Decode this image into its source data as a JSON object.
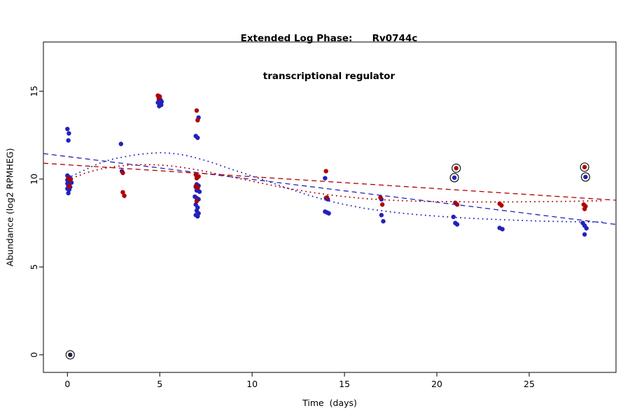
{
  "header": {
    "title_line1": "Extended Log Phase:      Rv0744c",
    "title_line2": "transcriptional regulator"
  },
  "chart_data": {
    "type": "scatter",
    "title": "Extended Log Phase: Rv0744c transcriptional regulator",
    "xlabel": "Time  (days)",
    "ylabel": "Abundance  (log2 RPMHEG)",
    "xlim": [
      -1.3,
      29.7
    ],
    "ylim": [
      -1.0,
      17.8
    ],
    "xticks": [
      0,
      5,
      10,
      15,
      20,
      25
    ],
    "yticks": [
      0,
      5,
      10,
      15
    ],
    "grid": false,
    "legend": "none",
    "colors": {
      "blue": "#2222bb",
      "red": "#b00000",
      "ring": "#000000"
    },
    "series": [
      {
        "name": "blue-point",
        "color": "#2222bb",
        "points": [
          [
            0.0,
            12.85
          ],
          [
            0.08,
            12.6
          ],
          [
            0.05,
            12.2
          ],
          [
            0.0,
            10.2
          ],
          [
            0.1,
            10.1
          ],
          [
            0.18,
            10.0
          ],
          [
            0.0,
            9.95
          ],
          [
            0.08,
            9.9
          ],
          [
            0.15,
            9.85
          ],
          [
            0.22,
            9.8
          ],
          [
            0.0,
            9.75
          ],
          [
            0.1,
            9.7
          ],
          [
            0.05,
            9.6
          ],
          [
            0.15,
            9.55
          ],
          [
            0.0,
            9.45
          ],
          [
            0.1,
            9.4
          ],
          [
            0.05,
            9.2
          ],
          [
            2.9,
            12.0
          ],
          [
            2.95,
            10.45
          ],
          [
            4.95,
            14.55
          ],
          [
            5.05,
            14.5
          ],
          [
            5.0,
            14.45
          ],
          [
            5.1,
            14.4
          ],
          [
            4.9,
            14.35
          ],
          [
            5.0,
            14.3
          ],
          [
            5.08,
            14.22
          ],
          [
            4.97,
            14.15
          ],
          [
            7.1,
            13.5
          ],
          [
            6.95,
            12.45
          ],
          [
            7.05,
            12.35
          ],
          [
            7.0,
            9.7
          ],
          [
            7.1,
            9.62
          ],
          [
            6.95,
            9.55
          ],
          [
            7.05,
            9.45
          ],
          [
            7.0,
            9.35
          ],
          [
            7.15,
            9.28
          ],
          [
            6.9,
            9.0
          ],
          [
            7.0,
            8.92
          ],
          [
            7.1,
            8.85
          ],
          [
            6.95,
            8.55
          ],
          [
            7.05,
            8.38
          ],
          [
            7.0,
            8.2
          ],
          [
            7.1,
            8.05
          ],
          [
            6.95,
            7.95
          ],
          [
            7.05,
            7.88
          ],
          [
            13.95,
            10.05
          ],
          [
            14.0,
            8.92
          ],
          [
            14.1,
            8.85
          ],
          [
            13.95,
            8.15
          ],
          [
            14.05,
            8.1
          ],
          [
            14.15,
            8.05
          ],
          [
            17.0,
            8.85
          ],
          [
            17.0,
            7.95
          ],
          [
            17.1,
            7.6
          ],
          [
            20.9,
            7.85
          ],
          [
            21.0,
            7.5
          ],
          [
            21.1,
            7.42
          ],
          [
            23.4,
            7.22
          ],
          [
            23.55,
            7.15
          ],
          [
            27.9,
            7.5
          ],
          [
            28.0,
            7.35
          ],
          [
            28.1,
            7.2
          ],
          [
            28.0,
            6.85
          ]
        ]
      },
      {
        "name": "red-point",
        "color": "#b00000",
        "points": [
          [
            0.05,
            10.05
          ],
          [
            0.15,
            9.95
          ],
          [
            0.1,
            9.6
          ],
          [
            3.0,
            10.35
          ],
          [
            3.0,
            9.25
          ],
          [
            3.08,
            9.05
          ],
          [
            4.9,
            14.75
          ],
          [
            5.0,
            14.7
          ],
          [
            4.95,
            14.62
          ],
          [
            7.0,
            13.9
          ],
          [
            7.05,
            13.35
          ],
          [
            6.95,
            10.25
          ],
          [
            7.1,
            10.15
          ],
          [
            7.0,
            10.05
          ],
          [
            6.95,
            9.6
          ],
          [
            7.05,
            9.5
          ],
          [
            7.0,
            8.75
          ],
          [
            14.0,
            10.45
          ],
          [
            14.05,
            8.95
          ],
          [
            16.95,
            8.95
          ],
          [
            17.05,
            8.55
          ],
          [
            21.0,
            8.65
          ],
          [
            21.1,
            8.55
          ],
          [
            23.4,
            8.6
          ],
          [
            23.5,
            8.5
          ],
          [
            27.95,
            8.55
          ],
          [
            28.05,
            8.45
          ],
          [
            28.0,
            8.3
          ]
        ]
      }
    ],
    "circled_points": [
      {
        "x": 0.15,
        "y": 0.0,
        "color": "#222244"
      },
      {
        "x": 21.05,
        "y": 10.62,
        "color": "#b00000"
      },
      {
        "x": 20.95,
        "y": 10.08,
        "color": "#2222bb"
      },
      {
        "x": 28.0,
        "y": 10.68,
        "color": "#b00000"
      },
      {
        "x": 28.05,
        "y": 10.12,
        "color": "#2222bb"
      }
    ],
    "lines": [
      {
        "name": "blue-dashed-trend",
        "color": "#2222bb",
        "style": "dashed",
        "points": [
          [
            -1.3,
            11.45
          ],
          [
            29.7,
            7.42
          ]
        ]
      },
      {
        "name": "red-dashed-trend",
        "color": "#b00000",
        "style": "dashed",
        "points": [
          [
            -1.3,
            10.9
          ],
          [
            29.7,
            8.8
          ]
        ]
      },
      {
        "name": "blue-dotted-loess",
        "color": "#2222bb",
        "style": "dotted",
        "points": [
          [
            0,
            10.05
          ],
          [
            0.5,
            10.3
          ],
          [
            1,
            10.55
          ],
          [
            1.5,
            10.8
          ],
          [
            2,
            11.0
          ],
          [
            2.5,
            11.15
          ],
          [
            3,
            11.25
          ],
          [
            3.5,
            11.35
          ],
          [
            4,
            11.42
          ],
          [
            4.5,
            11.47
          ],
          [
            5,
            11.5
          ],
          [
            5.5,
            11.48
          ],
          [
            6,
            11.42
          ],
          [
            6.5,
            11.33
          ],
          [
            7,
            11.2
          ],
          [
            7.5,
            11.05
          ],
          [
            8,
            10.88
          ],
          [
            8.5,
            10.7
          ],
          [
            9,
            10.52
          ],
          [
            9.5,
            10.35
          ],
          [
            10,
            10.17
          ],
          [
            10.5,
            10.0
          ],
          [
            11,
            9.82
          ],
          [
            11.5,
            9.63
          ],
          [
            12,
            9.45
          ],
          [
            12.5,
            9.28
          ],
          [
            13,
            9.1
          ],
          [
            13.5,
            8.95
          ],
          [
            14,
            8.8
          ],
          [
            14.5,
            8.67
          ],
          [
            15,
            8.55
          ],
          [
            15.5,
            8.45
          ],
          [
            16,
            8.35
          ],
          [
            16.5,
            8.27
          ],
          [
            17,
            8.2
          ],
          [
            17.5,
            8.13
          ],
          [
            18,
            8.07
          ],
          [
            18.5,
            8.02
          ],
          [
            19,
            7.97
          ],
          [
            19.5,
            7.93
          ],
          [
            20,
            7.89
          ],
          [
            21,
            7.82
          ],
          [
            22,
            7.76
          ],
          [
            23,
            7.71
          ],
          [
            24,
            7.67
          ],
          [
            25,
            7.63
          ],
          [
            26,
            7.6
          ],
          [
            27,
            7.58
          ],
          [
            28,
            7.56
          ],
          [
            29,
            7.55
          ]
        ]
      },
      {
        "name": "red-dotted-loess",
        "color": "#b00000",
        "style": "dotted",
        "points": [
          [
            0,
            9.95
          ],
          [
            0.5,
            10.15
          ],
          [
            1,
            10.35
          ],
          [
            1.5,
            10.5
          ],
          [
            2,
            10.62
          ],
          [
            2.5,
            10.7
          ],
          [
            3,
            10.76
          ],
          [
            3.5,
            10.8
          ],
          [
            4,
            10.82
          ],
          [
            4.5,
            10.82
          ],
          [
            5,
            10.8
          ],
          [
            5.5,
            10.76
          ],
          [
            6,
            10.7
          ],
          [
            6.5,
            10.62
          ],
          [
            7,
            10.53
          ],
          [
            7.5,
            10.43
          ],
          [
            8,
            10.32
          ],
          [
            8.5,
            10.21
          ],
          [
            9,
            10.1
          ],
          [
            9.5,
            9.99
          ],
          [
            10,
            9.88
          ],
          [
            10.5,
            9.77
          ],
          [
            11,
            9.66
          ],
          [
            11.5,
            9.56
          ],
          [
            12,
            9.46
          ],
          [
            12.5,
            9.37
          ],
          [
            13,
            9.28
          ],
          [
            13.5,
            9.2
          ],
          [
            14,
            9.13
          ],
          [
            14.5,
            9.06
          ],
          [
            15,
            9.0
          ],
          [
            15.5,
            8.95
          ],
          [
            16,
            8.9
          ],
          [
            16.5,
            8.86
          ],
          [
            17,
            8.83
          ],
          [
            17.5,
            8.8
          ],
          [
            18,
            8.78
          ],
          [
            18.5,
            8.76
          ],
          [
            19,
            8.74
          ],
          [
            19.5,
            8.73
          ],
          [
            20,
            8.72
          ],
          [
            21,
            8.71
          ],
          [
            22,
            8.7
          ],
          [
            23,
            8.7
          ],
          [
            24,
            8.7
          ],
          [
            25,
            8.71
          ],
          [
            26,
            8.72
          ],
          [
            27,
            8.73
          ],
          [
            28,
            8.75
          ],
          [
            29,
            8.77
          ]
        ]
      }
    ]
  }
}
